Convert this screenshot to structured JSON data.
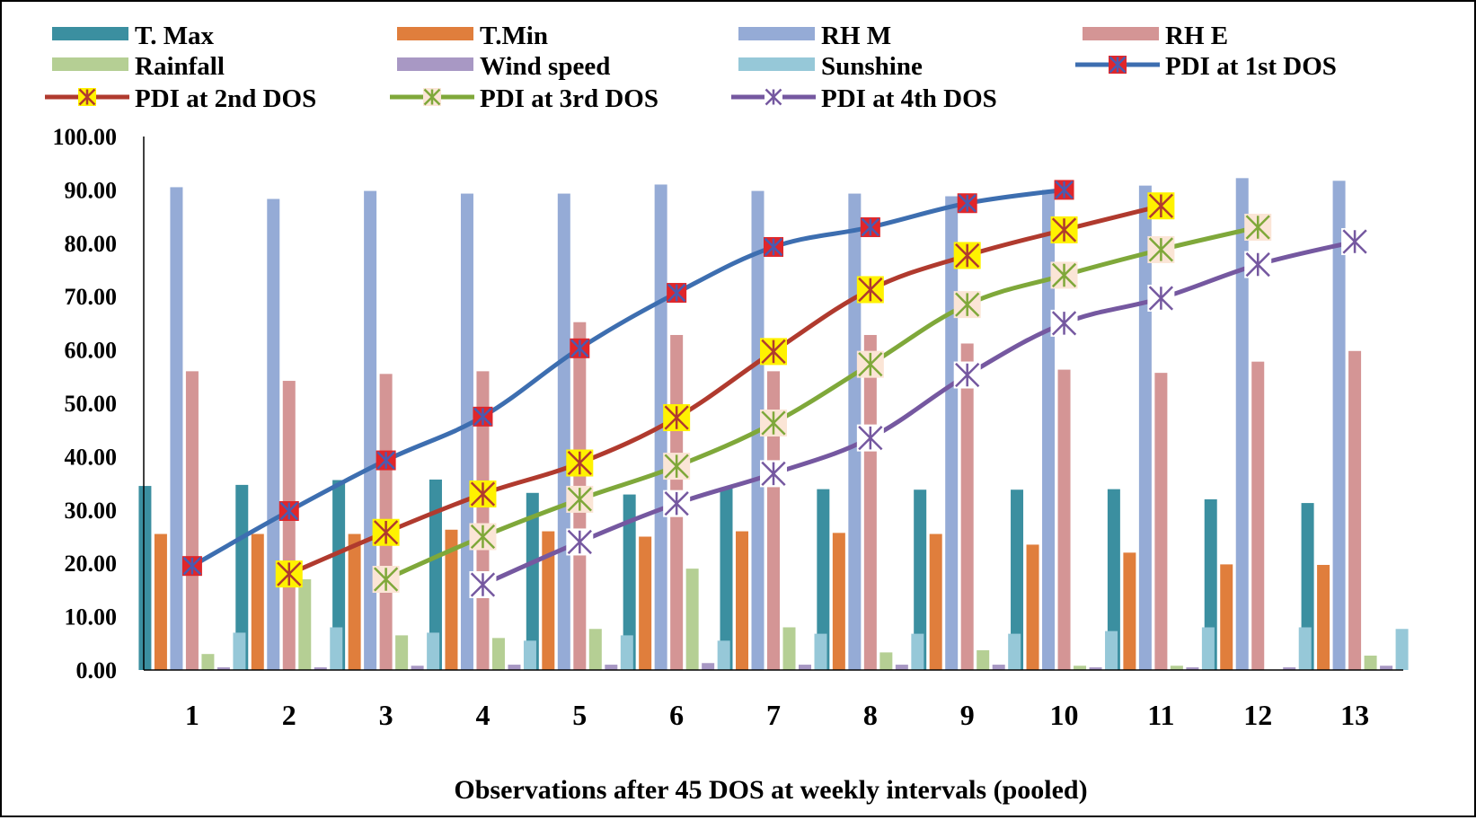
{
  "chart_data": {
    "type": "bar",
    "xlabel": "Observations after 45 DOS at weekly intervals  (pooled)",
    "ylabel": "",
    "ylim": [
      0,
      100
    ],
    "ytick_step": 10,
    "ytick_labels": [
      "0.00",
      "10.00",
      "20.00",
      "30.00",
      "40.00",
      "50.00",
      "60.00",
      "70.00",
      "80.00",
      "90.00",
      "100.00"
    ],
    "categories": [
      "1",
      "2",
      "3",
      "4",
      "5",
      "6",
      "7",
      "8",
      "9",
      "10",
      "11",
      "12",
      "13"
    ],
    "legend_position": "top",
    "grid": false,
    "bar_series": [
      {
        "name": "T. Max",
        "color": "#3B8FA0",
        "values": [
          34.5,
          34.7,
          35.6,
          35.7,
          33.2,
          32.9,
          34.2,
          33.9,
          33.8,
          33.8,
          33.9,
          32.0,
          31.3
        ]
      },
      {
        "name": "T.Min",
        "color": "#E07E3C",
        "values": [
          25.5,
          25.5,
          25.5,
          26.3,
          26.0,
          25.0,
          26.0,
          25.7,
          25.5,
          23.5,
          22.0,
          19.8,
          19.7
        ]
      },
      {
        "name": "RH M",
        "color": "#95ABD6",
        "values": [
          90.5,
          88.3,
          89.8,
          89.3,
          89.3,
          91.0,
          89.8,
          89.3,
          88.8,
          90.0,
          90.8,
          92.2,
          91.7
        ]
      },
      {
        "name": "RH E",
        "color": "#D49595",
        "values": [
          56.0,
          54.2,
          55.5,
          56.0,
          65.2,
          62.8,
          56.0,
          62.8,
          61.2,
          56.3,
          55.7,
          57.8,
          59.8
        ]
      },
      {
        "name": "Rainfall",
        "color": "#B5CF94",
        "values": [
          3.0,
          17.0,
          6.5,
          6.0,
          7.7,
          19.0,
          8.0,
          3.3,
          3.7,
          0.8,
          0.8,
          0.0,
          2.7
        ]
      },
      {
        "name": "Wind speed",
        "color": "#A898C4",
        "values": [
          0.5,
          0.5,
          0.8,
          1.0,
          1.0,
          1.3,
          1.0,
          1.0,
          1.0,
          0.5,
          0.5,
          0.5,
          0.8
        ]
      },
      {
        "name": "Sunshine",
        "color": "#96C8D8",
        "values": [
          7.0,
          8.0,
          7.0,
          5.5,
          6.5,
          5.5,
          6.8,
          6.8,
          6.8,
          7.3,
          8.0,
          8.0,
          7.7
        ]
      }
    ],
    "line_series": [
      {
        "name": "PDI at 1st DOS",
        "color": "#3D6EB0",
        "marker_fill": "#E0262A",
        "marker_star": "#4A5BB0",
        "x_offset": 0,
        "values": [
          19.5,
          29.8,
          39.3,
          47.5,
          60.3,
          70.7,
          79.3,
          83.0,
          87.5,
          90.0
        ]
      },
      {
        "name": "PDI at 2nd DOS",
        "color": "#B03A2E",
        "marker_fill": "#FFF200",
        "marker_star": "#B03A2E",
        "x_offset": 1,
        "values": [
          18.0,
          25.8,
          33.0,
          38.8,
          47.3,
          59.7,
          71.3,
          77.7,
          82.5,
          87.0
        ]
      },
      {
        "name": "PDI at 3rd DOS",
        "color": "#7FA83A",
        "marker_fill": "#FBE5D6",
        "marker_star": "#7FA83A",
        "x_offset": 2,
        "values": [
          17.0,
          25.0,
          32.0,
          38.2,
          46.3,
          57.3,
          68.5,
          74.0,
          78.8,
          83.0
        ]
      },
      {
        "name": "PDI at 4th DOS",
        "color": "#7558A0",
        "marker_fill": "#FFFFFF",
        "marker_star": "#7558A0",
        "x_offset": 3,
        "values": [
          16.0,
          24.0,
          31.2,
          36.8,
          43.5,
          55.3,
          65.0,
          69.7,
          76.0,
          80.3
        ]
      }
    ]
  }
}
